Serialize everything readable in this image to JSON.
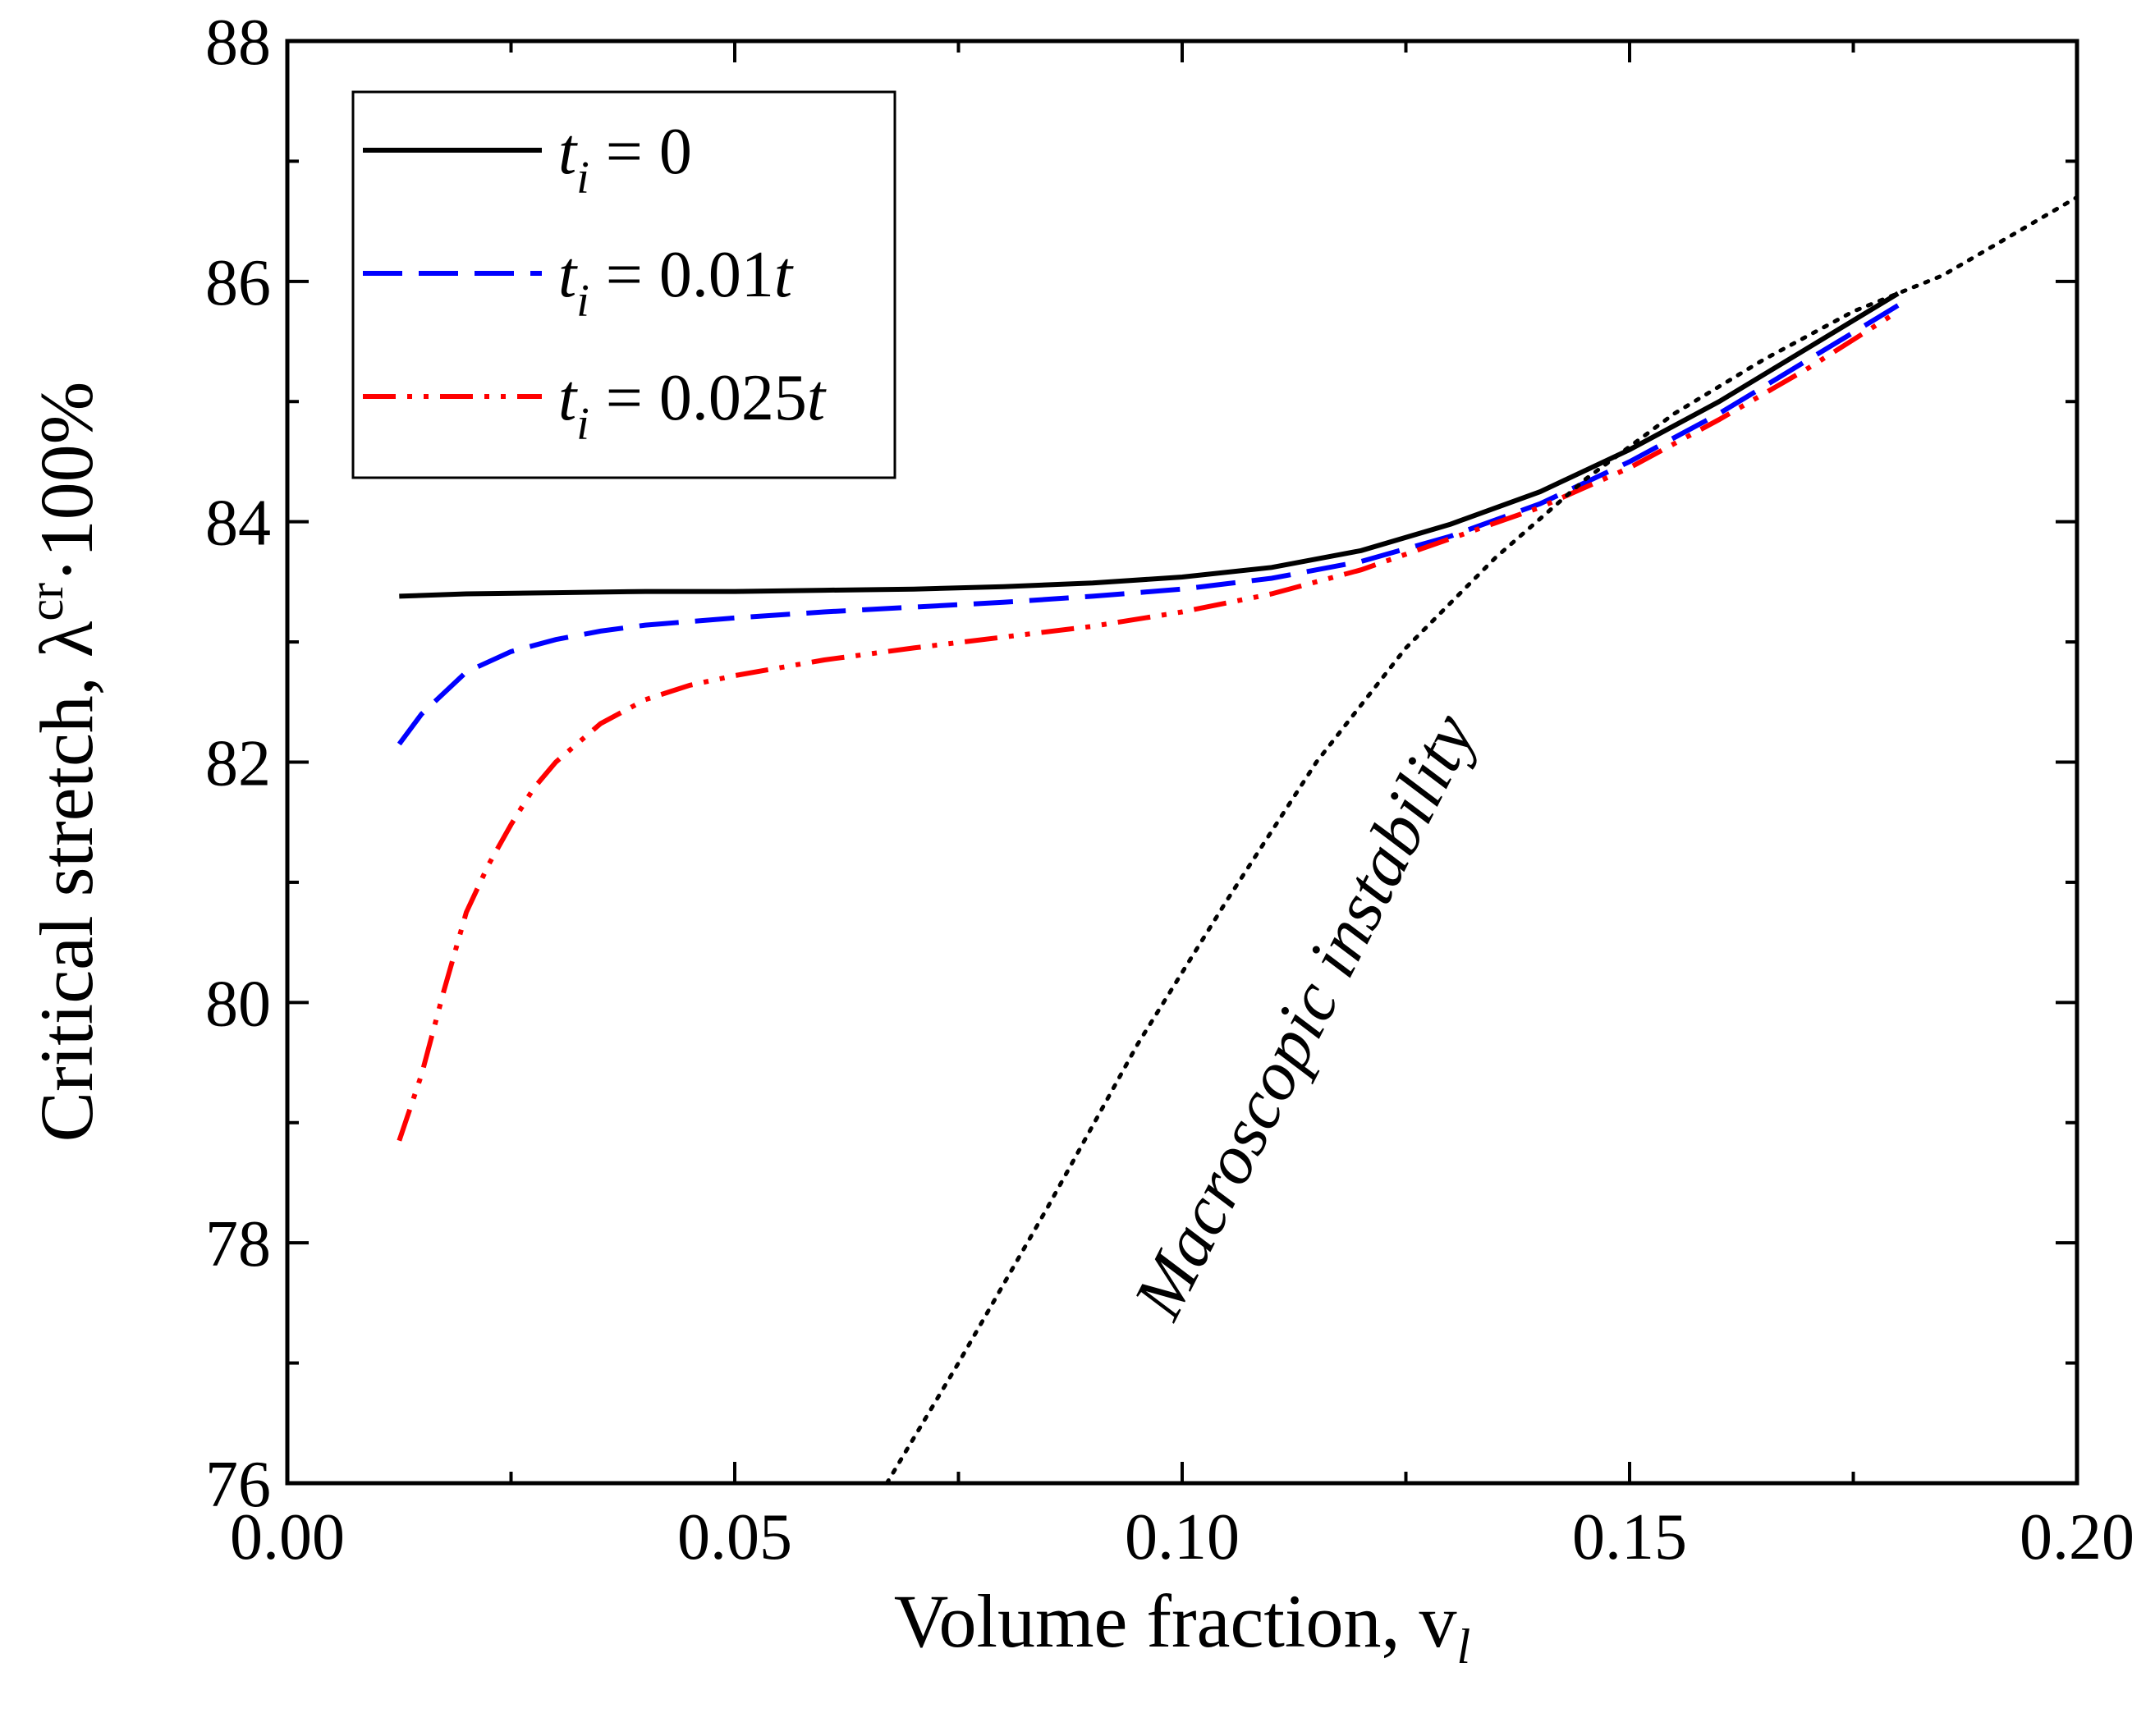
{
  "chart_data": {
    "type": "line",
    "title": "",
    "xlabel": "Volume fraction, v",
    "xlabel_sub": "l",
    "ylabel_main": "Critical stretch, λ",
    "ylabel_sup": "cr",
    "ylabel_tail": "·100%",
    "xlim": [
      0,
      0.2
    ],
    "ylim": [
      76,
      88
    ],
    "xticks": [
      0,
      0.05,
      0.1,
      0.15,
      0.2
    ],
    "xtick_labels": [
      "0.00",
      "0.05",
      "0.10",
      "0.15",
      "0.20"
    ],
    "yticks": [
      76,
      78,
      80,
      82,
      84,
      86,
      88
    ],
    "ytick_labels": [
      "76",
      "78",
      "80",
      "82",
      "84",
      "86",
      "88"
    ],
    "grid": false,
    "legend_position": "top-left",
    "series": [
      {
        "name": "t_i = 0",
        "legend": {
          "var": "t",
          "sub": "i",
          "rest": " = 0",
          "trail": ""
        },
        "color": "#000000",
        "style": "solid",
        "x": [
          0.0125,
          0.02,
          0.03,
          0.04,
          0.05,
          0.06,
          0.07,
          0.08,
          0.09,
          0.1,
          0.11,
          0.12,
          0.13,
          0.14,
          0.15,
          0.16,
          0.17,
          0.18
        ],
        "y": [
          83.38,
          83.4,
          83.41,
          83.42,
          83.42,
          83.43,
          83.44,
          83.46,
          83.49,
          83.54,
          83.62,
          83.76,
          83.98,
          84.25,
          84.6,
          85.0,
          85.45,
          85.9
        ]
      },
      {
        "name": "t_i = 0.01t",
        "legend": {
          "var": "t",
          "sub": "i",
          "rest": " = 0.01",
          "trail": "t"
        },
        "color": "#0000ff",
        "style": "dashed",
        "x": [
          0.0125,
          0.015,
          0.02,
          0.025,
          0.03,
          0.035,
          0.04,
          0.05,
          0.06,
          0.07,
          0.08,
          0.09,
          0.1,
          0.11,
          0.12,
          0.13,
          0.14,
          0.15,
          0.16,
          0.17,
          0.18
        ],
        "y": [
          82.15,
          82.4,
          82.75,
          82.92,
          83.02,
          83.09,
          83.14,
          83.2,
          83.25,
          83.29,
          83.33,
          83.38,
          83.44,
          83.53,
          83.67,
          83.88,
          84.15,
          84.5,
          84.9,
          85.35,
          85.8
        ]
      },
      {
        "name": "t_i = 0.025t",
        "legend": {
          "var": "t",
          "sub": "i",
          "rest": " = 0.025",
          "trail": "t"
        },
        "color": "#ff0000",
        "style": "dashdot",
        "x": [
          0.0125,
          0.015,
          0.0175,
          0.02,
          0.0225,
          0.025,
          0.0275,
          0.03,
          0.035,
          0.04,
          0.045,
          0.05,
          0.06,
          0.07,
          0.08,
          0.09,
          0.1,
          0.11,
          0.12,
          0.13,
          0.14,
          0.15,
          0.16,
          0.17,
          0.18
        ],
        "y": [
          78.85,
          79.4,
          80.1,
          80.75,
          81.15,
          81.48,
          81.78,
          82.0,
          82.32,
          82.52,
          82.64,
          82.72,
          82.85,
          82.95,
          83.04,
          83.13,
          83.25,
          83.4,
          83.6,
          83.86,
          84.12,
          84.45,
          84.85,
          85.28,
          85.75
        ]
      },
      {
        "name": "Macroscopic instability",
        "legend": null,
        "color": "#000000",
        "style": "dotted",
        "x": [
          0.067,
          0.075,
          0.085,
          0.095,
          0.105,
          0.115,
          0.125,
          0.135,
          0.145,
          0.155,
          0.165,
          0.175,
          0.185,
          0.2
        ],
        "y": [
          76.0,
          77.0,
          78.3,
          79.65,
          80.85,
          82.0,
          82.95,
          83.7,
          84.35,
          84.9,
          85.35,
          85.75,
          86.05,
          86.7
        ]
      }
    ],
    "annotations": [
      {
        "text": "Macroscopic instability",
        "x": 0.116,
        "y": 79.8,
        "rotation_deg": -63
      }
    ]
  }
}
